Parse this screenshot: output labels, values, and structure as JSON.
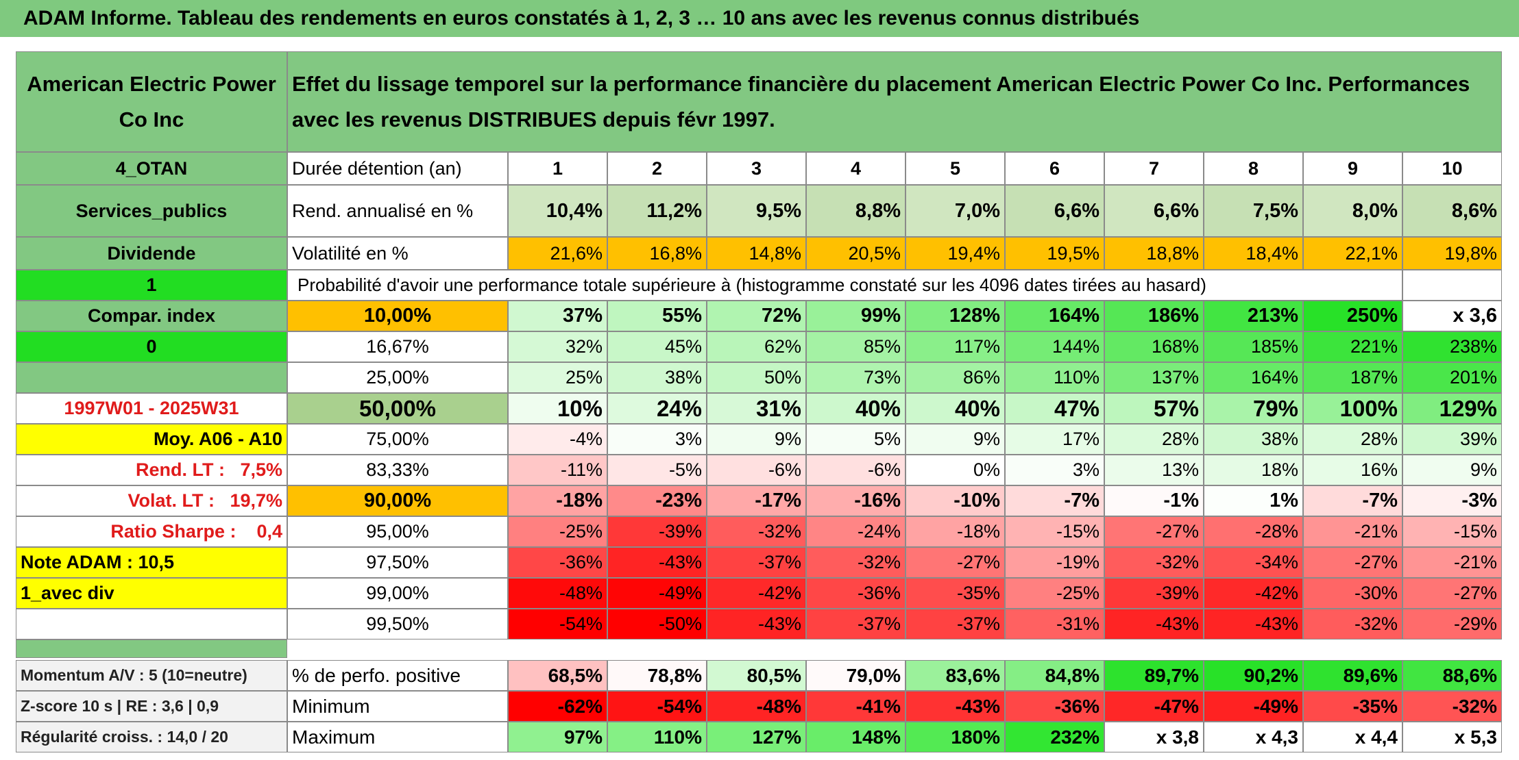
{
  "title": "ADAM Informe. Tableau des rendements en euros constatés à 1, 2, 3 … 10 ans avec les revenus connus distribués",
  "header": {
    "fund": "American Electric Power Co Inc",
    "description": "Effet du lissage temporel sur la performance financière du placement American Electric Power Co Inc. Performances avec les revenus DISTRIBUES depuis févr 1997."
  },
  "table": {
    "rows": [
      {
        "label": "4_OTAN",
        "name": "Durée détention (an)",
        "cells": [
          "1",
          "2",
          "3",
          "4",
          "5",
          "6",
          "7",
          "8",
          "9",
          "10"
        ]
      },
      {
        "label": "Services_publics",
        "name": "Rend. annualisé en %",
        "cells": [
          "10,4%",
          "11,2%",
          "9,5%",
          "8,8%",
          "7,0%",
          "6,6%",
          "6,6%",
          "7,5%",
          "8,0%",
          "8,6%"
        ]
      },
      {
        "label": "Dividende",
        "name": "Volatilité en %",
        "cells": [
          "21,6%",
          "16,8%",
          "14,8%",
          "20,5%",
          "19,4%",
          "19,5%",
          "18,8%",
          "18,4%",
          "22,1%",
          "19,8%"
        ]
      },
      {
        "label": "1",
        "name": "Probabilité d'avoir une performance totale supérieure à (histogramme constaté sur les 4096 dates tirées au hasard)"
      },
      {
        "label": "Compar. index",
        "name": "10,00%",
        "cells": [
          "37%",
          "55%",
          "72%",
          "99%",
          "128%",
          "164%",
          "186%",
          "213%",
          "250%",
          "x 3,6"
        ]
      },
      {
        "label": "0",
        "name": "16,67%",
        "cells": [
          "32%",
          "45%",
          "62%",
          "85%",
          "117%",
          "144%",
          "168%",
          "185%",
          "221%",
          "238%"
        ]
      },
      {
        "name": "25,00%",
        "cells": [
          "25%",
          "38%",
          "50%",
          "73%",
          "86%",
          "110%",
          "137%",
          "164%",
          "187%",
          "201%"
        ]
      },
      {
        "label": "1997W01 - 2025W31",
        "name": "50,00%",
        "cells": [
          "10%",
          "24%",
          "31%",
          "40%",
          "40%",
          "47%",
          "57%",
          "79%",
          "100%",
          "129%"
        ]
      },
      {
        "label": "Moy. A06 - A10",
        "name": "75,00%",
        "cells": [
          "-4%",
          "3%",
          "9%",
          "5%",
          "9%",
          "17%",
          "28%",
          "38%",
          "28%",
          "39%"
        ]
      },
      {
        "label": "Rend. LT :   7,5%",
        "name": "83,33%",
        "cells": [
          "-11%",
          "-5%",
          "-6%",
          "-6%",
          "0%",
          "3%",
          "13%",
          "18%",
          "16%",
          "9%"
        ]
      },
      {
        "label": "Volat. LT :   19,7%",
        "name": "90,00%",
        "cells": [
          "-18%",
          "-23%",
          "-17%",
          "-16%",
          "-10%",
          "-7%",
          "-1%",
          "1%",
          "-7%",
          "-3%"
        ]
      },
      {
        "label": "Ratio Sharpe :    0,4",
        "name": "95,00%",
        "cells": [
          "-25%",
          "-39%",
          "-32%",
          "-24%",
          "-18%",
          "-15%",
          "-27%",
          "-28%",
          "-21%",
          "-15%"
        ]
      },
      {
        "label": "Note ADAM : 10,5",
        "name": "97,50%",
        "cells": [
          "-36%",
          "-43%",
          "-37%",
          "-32%",
          "-27%",
          "-19%",
          "-32%",
          "-34%",
          "-27%",
          "-21%"
        ]
      },
      {
        "label": "1_avec div",
        "name": "99,00%",
        "cells": [
          "-48%",
          "-49%",
          "-42%",
          "-36%",
          "-35%",
          "-25%",
          "-39%",
          "-42%",
          "-30%",
          "-27%"
        ]
      },
      {
        "name": "99,50%",
        "cells": [
          "-54%",
          "-50%",
          "-43%",
          "-37%",
          "-37%",
          "-31%",
          "-43%",
          "-43%",
          "-32%",
          "-29%"
        ]
      }
    ],
    "summary_rows": [
      {
        "label": "Momentum A/V : 5 (10=neutre)",
        "name": "% de perfo. positive",
        "cells": [
          "68,5%",
          "78,8%",
          "80,5%",
          "79,0%",
          "83,6%",
          "84,8%",
          "89,7%",
          "90,2%",
          "89,6%",
          "88,6%"
        ]
      },
      {
        "label": "Z-score 10 s | RE : 3,6 | 0,9",
        "name": "Minimum",
        "cells": [
          "-62%",
          "-54%",
          "-48%",
          "-41%",
          "-43%",
          "-36%",
          "-47%",
          "-49%",
          "-35%",
          "-32%"
        ]
      },
      {
        "label": "Régularité croiss. : 14,0 / 20",
        "name": "Maximum",
        "cells": [
          "97%",
          "110%",
          "127%",
          "148%",
          "180%",
          "232%",
          "x 3,8",
          "x 4,3",
          "x 4,4",
          "x 5,3"
        ]
      }
    ]
  }
}
